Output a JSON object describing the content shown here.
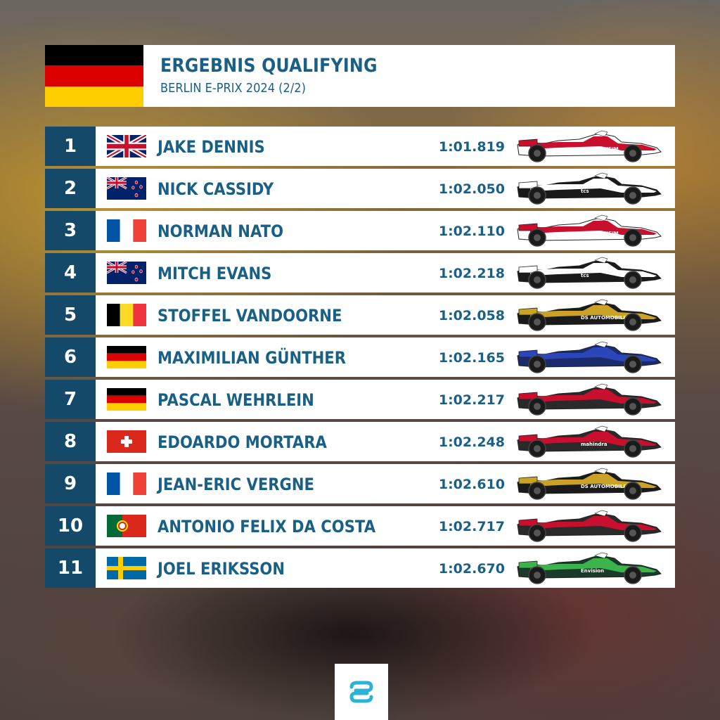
{
  "header": {
    "title": "ERGEBNIS QUALIFYING",
    "subtitle": "BERLIN E-PRIX 2024 (2/2)",
    "flag_colors": [
      "#000000",
      "#dd0000",
      "#ffce00"
    ]
  },
  "colors": {
    "position_bg": "#14496a",
    "text": "#1a5f85",
    "logo_accent": "#2bb3d6"
  },
  "results": [
    {
      "pos": "1",
      "flag": "gb",
      "name": "JAKE DENNIS",
      "time": "1:01.819",
      "car": "andretti"
    },
    {
      "pos": "2",
      "flag": "nz",
      "name": "NICK CASSIDY",
      "time": "1:02.050",
      "car": "jaguar"
    },
    {
      "pos": "3",
      "flag": "fr",
      "name": "NORMAN NATO",
      "time": "1:02.110",
      "car": "andretti"
    },
    {
      "pos": "4",
      "flag": "nz",
      "name": "MITCH EVANS",
      "time": "1:02.218",
      "car": "jaguar"
    },
    {
      "pos": "5",
      "flag": "be",
      "name": "STOFFEL VANDOORNE",
      "time": "1:02.058",
      "car": "ds"
    },
    {
      "pos": "6",
      "flag": "de",
      "name": "MAXIMILIAN GÜNTHER",
      "time": "1:02.165",
      "car": "maserati"
    },
    {
      "pos": "7",
      "flag": "de",
      "name": "PASCAL WEHRLEIN",
      "time": "1:02.217",
      "car": "porsche"
    },
    {
      "pos": "8",
      "flag": "ch",
      "name": "EDOARDO MORTARA",
      "time": "1:02.248",
      "car": "mahindra"
    },
    {
      "pos": "9",
      "flag": "fr",
      "name": "JEAN-ERIC VERGNE",
      "time": "1:02.610",
      "car": "ds"
    },
    {
      "pos": "10",
      "flag": "pt",
      "name": "ANTONIO FELIX DA COSTA",
      "time": "1:02.717",
      "car": "porsche"
    },
    {
      "pos": "11",
      "flag": "se",
      "name": "JOEL ERIKSSON",
      "time": "1:02.670",
      "car": "envision"
    }
  ],
  "car_liveries": {
    "andretti": {
      "body": "#ffffff",
      "accent": "#c8102e",
      "label": "GUGGENHEIM"
    },
    "jaguar": {
      "body": "#1a1a1a",
      "accent": "#ffffff",
      "label": "tcs"
    },
    "ds": {
      "body": "#1a1a1a",
      "accent": "#c9a227",
      "label": "DS AUTOMOBILES"
    },
    "maserati": {
      "body": "#1b2a6b",
      "accent": "#2b46b8",
      "label": ""
    },
    "porsche": {
      "body": "#2a2a2a",
      "accent": "#c8102e",
      "label": ""
    },
    "mahindra": {
      "body": "#2a2a2a",
      "accent": "#c8102e",
      "label": "mahindra"
    },
    "envision": {
      "body": "#1a3a2a",
      "accent": "#3cb44b",
      "label": "Envision"
    }
  }
}
